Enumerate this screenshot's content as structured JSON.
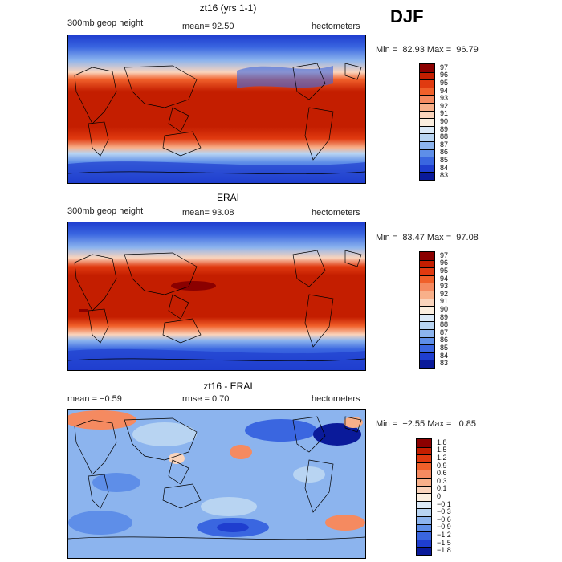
{
  "season": "DJF",
  "panels": [
    {
      "title": "zt16 (yrs 1-1)",
      "left_label": "300mb geop height",
      "center_label": "mean=  92.50",
      "right_label": "hectometers",
      "minmax": "Min =  82.93 Max =  96.79",
      "map_kind": "field",
      "levels": [
        "97",
        "96",
        "95",
        "94",
        "93",
        "92",
        "91",
        "90",
        "89",
        "88",
        "87",
        "86",
        "85",
        "84",
        "83"
      ],
      "colors": [
        "#8b0000",
        "#c41e00",
        "#e03a10",
        "#f0602a",
        "#f58a60",
        "#f8b08a",
        "#fad4bc",
        "#fbeedf",
        "#dbe9f7",
        "#b8d4f2",
        "#8cb4ee",
        "#5e8ee8",
        "#3a66e0",
        "#1f3ecf",
        "#0a1a9a"
      ]
    },
    {
      "title": "ERAI",
      "left_label": "300mb geop height",
      "center_label": "mean=  93.08",
      "right_label": "hectometers",
      "minmax": "Min =  83.47 Max =  97.08",
      "map_kind": "field",
      "levels": [
        "97",
        "96",
        "95",
        "94",
        "93",
        "92",
        "91",
        "90",
        "89",
        "88",
        "87",
        "86",
        "85",
        "84",
        "83"
      ],
      "colors": [
        "#8b0000",
        "#c41e00",
        "#e03a10",
        "#f0602a",
        "#f58a60",
        "#f8b08a",
        "#fad4bc",
        "#fbeedf",
        "#dbe9f7",
        "#b8d4f2",
        "#8cb4ee",
        "#5e8ee8",
        "#3a66e0",
        "#1f3ecf",
        "#0a1a9a"
      ]
    },
    {
      "title": "zt16 - ERAI",
      "left_label": "mean =  −0.59",
      "center_label": "rmse =   0.70",
      "right_label": "hectometers",
      "minmax": "Min =  −2.55 Max =   0.85",
      "map_kind": "diff",
      "levels": [
        "1.8",
        "1.5",
        "1.2",
        "0.9",
        "0.6",
        "0.3",
        "0.1",
        "0",
        "−0.1",
        "−0.3",
        "−0.6",
        "−0.9",
        "−1.2",
        "−1.5",
        "−1.8"
      ],
      "colors": [
        "#8b0000",
        "#c41e00",
        "#e03a10",
        "#f0602a",
        "#f58a60",
        "#f8b08a",
        "#fad4bc",
        "#fbeedf",
        "#dbe9f7",
        "#b8d4f2",
        "#8cb4ee",
        "#5e8ee8",
        "#3a66e0",
        "#1f3ecf",
        "#0a1a9a"
      ]
    }
  ]
}
